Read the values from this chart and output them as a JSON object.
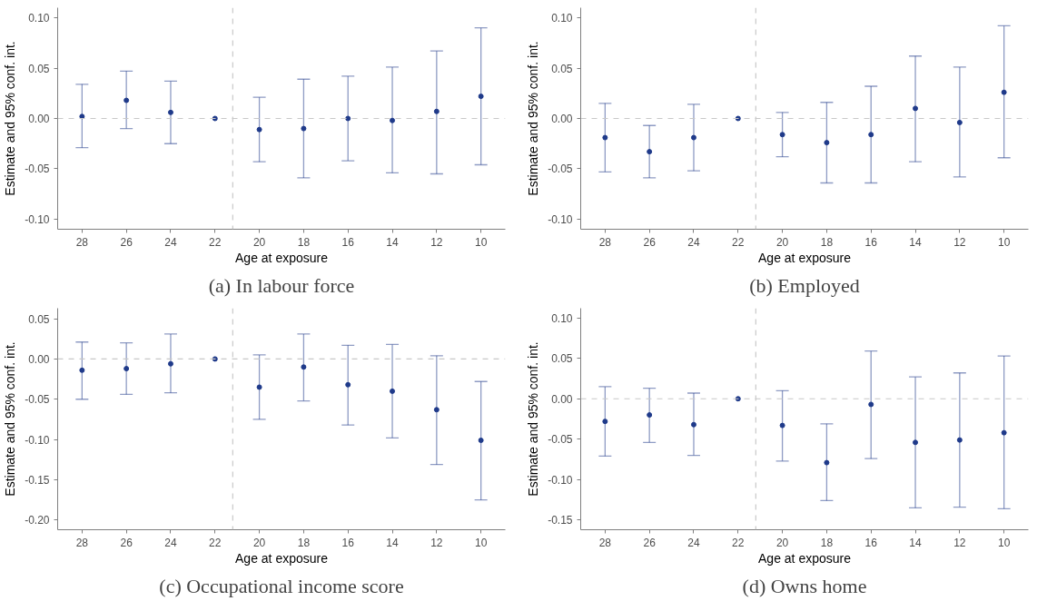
{
  "chart_data": [
    {
      "type": "scatter",
      "title": "(a) In labour force",
      "xlabel": "Age at exposure",
      "ylabel": "Estimate and 95% conf. int.",
      "x": [
        28,
        26,
        24,
        22,
        20,
        18,
        16,
        14,
        12,
        10
      ],
      "xlim": [
        29.1,
        8.9
      ],
      "xticks": [
        28,
        26,
        24,
        22,
        20,
        18,
        16,
        14,
        12,
        10
      ],
      "ylim": [
        -0.11,
        0.11
      ],
      "yticks": [
        {
          "value": -0.1,
          "label": "-0.10"
        },
        {
          "value": -0.05,
          "label": "-0.05"
        },
        {
          "value": 0,
          "label": "0.00"
        },
        {
          "value": 0.05,
          "label": "0.05"
        },
        {
          "value": 0.1,
          "label": "0.10"
        }
      ],
      "series": [
        {
          "color": "#1f3a8a",
          "values": [
            0.002,
            0.018,
            0.006,
            0,
            -0.011,
            -0.01,
            0.0,
            -0.002,
            0.007,
            0.022
          ],
          "errors": [
            [
              -0.029,
              0.034
            ],
            [
              -0.01,
              0.047
            ],
            [
              -0.025,
              0.037
            ],
            null,
            [
              -0.043,
              0.021
            ],
            [
              -0.059,
              0.039
            ],
            [
              -0.042,
              0.042
            ],
            [
              -0.054,
              0.051
            ],
            [
              -0.055,
              0.067
            ],
            [
              -0.046,
              0.09
            ]
          ]
        }
      ],
      "ref_lines": [
        {
          "axis": "y",
          "value": 0,
          "color": "#c8c8c8",
          "line_style": "dashed"
        },
        {
          "axis": "x",
          "value": 21.2,
          "color": "#c8c8c8",
          "line_style": "dashed"
        }
      ],
      "grid": false,
      "marker": "circle"
    },
    {
      "type": "scatter",
      "title": "(b) Employed",
      "xlabel": "Age at exposure",
      "ylabel": "Estimate and 95% conf. int.",
      "x": [
        28,
        26,
        24,
        22,
        20,
        18,
        16,
        14,
        12,
        10
      ],
      "xlim": [
        29.1,
        8.9
      ],
      "xticks": [
        28,
        26,
        24,
        22,
        20,
        18,
        16,
        14,
        12,
        10
      ],
      "ylim": [
        -0.11,
        0.11
      ],
      "yticks": [
        {
          "value": -0.1,
          "label": "-0.10"
        },
        {
          "value": -0.05,
          "label": "-0.05"
        },
        {
          "value": 0,
          "label": "0.00"
        },
        {
          "value": 0.05,
          "label": "0.05"
        },
        {
          "value": 0.1,
          "label": "0.10"
        }
      ],
      "series": [
        {
          "color": "#1f3a8a",
          "values": [
            -0.019,
            -0.033,
            -0.019,
            0,
            -0.016,
            -0.024,
            -0.016,
            0.01,
            -0.004,
            0.026
          ],
          "errors": [
            [
              -0.053,
              0.015
            ],
            [
              -0.059,
              -0.007
            ],
            [
              -0.052,
              0.014
            ],
            null,
            [
              -0.038,
              0.006
            ],
            [
              -0.064,
              0.016
            ],
            [
              -0.064,
              0.032
            ],
            [
              -0.043,
              0.062
            ],
            [
              -0.058,
              0.051
            ],
            [
              -0.039,
              0.092
            ]
          ]
        }
      ],
      "ref_lines": [
        {
          "axis": "y",
          "value": 0,
          "color": "#c8c8c8",
          "line_style": "dashed"
        },
        {
          "axis": "x",
          "value": 21.2,
          "color": "#c8c8c8",
          "line_style": "dashed"
        }
      ],
      "grid": false,
      "marker": "circle"
    },
    {
      "type": "scatter",
      "title": "(c) Occupational income score",
      "xlabel": "Age at exposure",
      "ylabel": "Estimate and 95% conf. int.",
      "x": [
        28,
        26,
        24,
        22,
        20,
        18,
        16,
        14,
        12,
        10
      ],
      "xlim": [
        29.1,
        8.9
      ],
      "xticks": [
        28,
        26,
        24,
        22,
        20,
        18,
        16,
        14,
        12,
        10
      ],
      "ylim": [
        -0.212,
        0.063
      ],
      "yticks": [
        {
          "value": -0.2,
          "label": "-0.20"
        },
        {
          "value": -0.15,
          "label": "-0.15"
        },
        {
          "value": -0.1,
          "label": "-0.10"
        },
        {
          "value": -0.05,
          "label": "-0.05"
        },
        {
          "value": 0,
          "label": "0.00"
        },
        {
          "value": 0.05,
          "label": "0.05"
        }
      ],
      "series": [
        {
          "color": "#1f3a8a",
          "values": [
            -0.014,
            -0.012,
            -0.006,
            0,
            -0.035,
            -0.01,
            -0.032,
            -0.04,
            -0.063,
            -0.101
          ],
          "errors": [
            [
              -0.05,
              0.021
            ],
            [
              -0.044,
              0.02
            ],
            [
              -0.042,
              0.031
            ],
            null,
            [
              -0.075,
              0.005
            ],
            [
              -0.052,
              0.031
            ],
            [
              -0.082,
              0.017
            ],
            [
              -0.098,
              0.018
            ],
            [
              -0.131,
              0.004
            ],
            [
              -0.175,
              -0.028
            ]
          ]
        }
      ],
      "ref_lines": [
        {
          "axis": "y",
          "value": 0,
          "color": "#c8c8c8",
          "line_style": "dashed"
        },
        {
          "axis": "x",
          "value": 21.2,
          "color": "#c8c8c8",
          "line_style": "dashed"
        }
      ],
      "grid": false,
      "marker": "circle"
    },
    {
      "type": "scatter",
      "title": "(d) Owns home",
      "xlabel": "Age at exposure",
      "ylabel": "Estimate and 95% conf. int.",
      "x": [
        28,
        26,
        24,
        22,
        20,
        18,
        16,
        14,
        12,
        10
      ],
      "xlim": [
        29.1,
        8.9
      ],
      "xticks": [
        28,
        26,
        24,
        22,
        20,
        18,
        16,
        14,
        12,
        10
      ],
      "ylim": [
        -0.162,
        0.112
      ],
      "yticks": [
        {
          "value": -0.15,
          "label": "-0.15"
        },
        {
          "value": -0.1,
          "label": "-0.10"
        },
        {
          "value": -0.05,
          "label": "-0.05"
        },
        {
          "value": 0,
          "label": "0.00"
        },
        {
          "value": 0.05,
          "label": "0.05"
        },
        {
          "value": 0.1,
          "label": "0.10"
        }
      ],
      "series": [
        {
          "color": "#1f3a8a",
          "values": [
            -0.028,
            -0.02,
            -0.032,
            0,
            -0.033,
            -0.079,
            -0.007,
            -0.054,
            -0.051,
            -0.042
          ],
          "errors": [
            [
              -0.071,
              0.015
            ],
            [
              -0.054,
              0.013
            ],
            [
              -0.07,
              0.007
            ],
            null,
            [
              -0.077,
              0.01
            ],
            [
              -0.126,
              -0.031
            ],
            [
              -0.074,
              0.059
            ],
            [
              -0.135,
              0.027
            ],
            [
              -0.134,
              0.032
            ],
            [
              -0.136,
              0.053
            ]
          ]
        }
      ],
      "ref_lines": [
        {
          "axis": "y",
          "value": 0,
          "color": "#c8c8c8",
          "line_style": "dashed"
        },
        {
          "axis": "x",
          "value": 21.2,
          "color": "#c8c8c8",
          "line_style": "dashed"
        }
      ],
      "grid": false,
      "marker": "circle"
    }
  ]
}
